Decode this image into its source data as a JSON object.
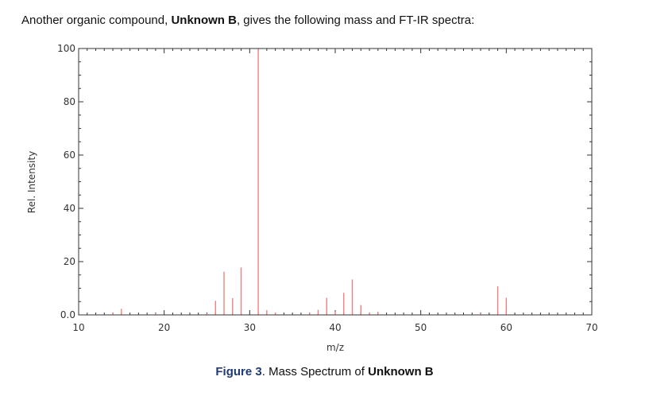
{
  "intro": {
    "prefix": "Another organic compound, ",
    "compound": "Unknown B",
    "suffix": ", gives the following mass and FT-IR spectra:"
  },
  "caption": {
    "figure_label": "Figure 3",
    "text": ". Mass Spectrum of ",
    "compound": "Unknown B"
  },
  "chart_data": {
    "type": "bar",
    "xlabel": "m/z",
    "ylabel": "Rel. Intensity",
    "xlim": [
      10,
      70
    ],
    "ylim": [
      0,
      100
    ],
    "x_ticks": [
      10,
      20,
      30,
      40,
      50,
      60,
      70
    ],
    "y_ticks": [
      "0.0",
      "20",
      "40",
      "60",
      "80",
      "100"
    ],
    "y_tick_values": [
      0,
      20,
      40,
      60,
      80,
      100
    ],
    "bar_color": "#f08080",
    "peaks": [
      {
        "mz": 14,
        "intensity": 0.8
      },
      {
        "mz": 15,
        "intensity": 2.3
      },
      {
        "mz": 19,
        "intensity": 0.6
      },
      {
        "mz": 25,
        "intensity": 0.6
      },
      {
        "mz": 26,
        "intensity": 5.3
      },
      {
        "mz": 27,
        "intensity": 16.2
      },
      {
        "mz": 28,
        "intensity": 6.3
      },
      {
        "mz": 29,
        "intensity": 17.8
      },
      {
        "mz": 31,
        "intensity": 100
      },
      {
        "mz": 32,
        "intensity": 1.8
      },
      {
        "mz": 33,
        "intensity": 0.9
      },
      {
        "mz": 37,
        "intensity": 0.8
      },
      {
        "mz": 38,
        "intensity": 1.9
      },
      {
        "mz": 39,
        "intensity": 6.4
      },
      {
        "mz": 40,
        "intensity": 1.2
      },
      {
        "mz": 41,
        "intensity": 8.3
      },
      {
        "mz": 42,
        "intensity": 13.3
      },
      {
        "mz": 43,
        "intensity": 3.7
      },
      {
        "mz": 44,
        "intensity": 0.8
      },
      {
        "mz": 45,
        "intensity": 1.2
      },
      {
        "mz": 57,
        "intensity": 0.6
      },
      {
        "mz": 59,
        "intensity": 10.7
      },
      {
        "mz": 60,
        "intensity": 6.4
      }
    ]
  }
}
